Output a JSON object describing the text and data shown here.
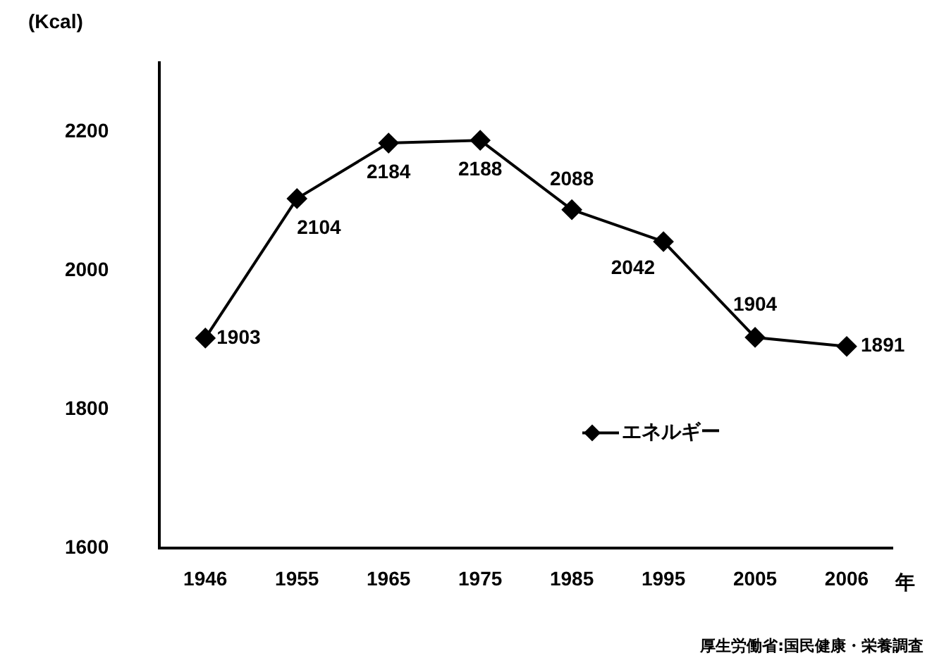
{
  "chart_data": {
    "type": "line",
    "ylabel": "(Kcal)",
    "xlabel": "年",
    "categories": [
      "1946",
      "1955",
      "1965",
      "1975",
      "1985",
      "1995",
      "2005",
      "2006"
    ],
    "series": [
      {
        "name": "エネルギー",
        "color": "#000000",
        "values": [
          1903,
          2104,
          2184,
          2188,
          2088,
          2042,
          1904,
          1891
        ]
      }
    ],
    "ylim": [
      1600,
      2300
    ],
    "yticks": [
      1600,
      1800,
      2000,
      2200
    ],
    "grid": false,
    "legend": "bottom right",
    "marker": "diamond",
    "line_style": "solid",
    "data_labels": true,
    "annotations": [
      "厚生労働省:国民健康・栄養調査"
    ]
  }
}
